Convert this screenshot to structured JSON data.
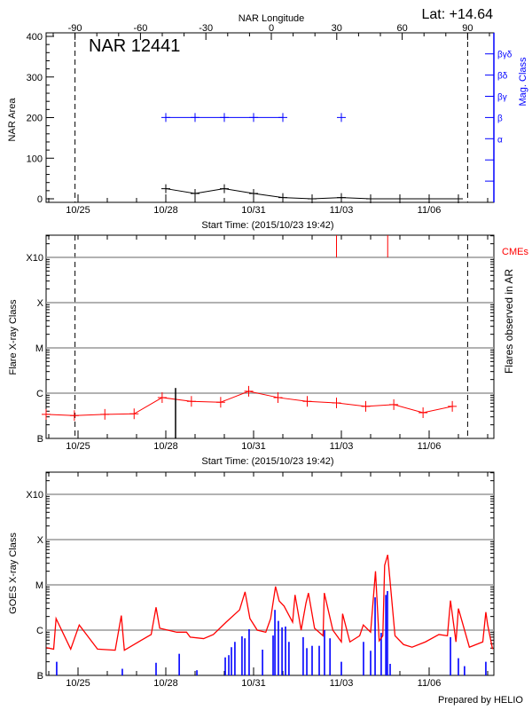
{
  "colors": {
    "area": "#000000",
    "mag_class": "#0000ff",
    "flares": "#ff0000",
    "cme": "#ff0000",
    "goes_long": "#ff0000",
    "goes_events": "#0000ff",
    "grid": "#999999"
  },
  "footer": "Prepared by HELIO",
  "chart_data": [
    {
      "type": "line",
      "title": "NAR 12441",
      "latitude_label": "Lat: +14.64",
      "xlabel": "Start Time: (2015/10/23 19:42)",
      "x_top_label": "NAR Longitude",
      "x_top_ticks": [
        -90,
        -60,
        -30,
        0,
        30,
        60,
        90
      ],
      "x_ticks": [
        "10/25",
        "10/28",
        "10/31",
        "11/03",
        "11/06"
      ],
      "ylabel": "NAR Area",
      "ylim": [
        0,
        400
      ],
      "y_ticks": [
        0,
        100,
        200,
        300,
        400
      ],
      "y2label": "Mag. Class",
      "y2_ticks": [
        "",
        "",
        "",
        "α",
        "β",
        "βγ",
        "βδ",
        "βγδ",
        ""
      ],
      "limb_longitudes": [
        -90,
        90
      ],
      "series": [
        {
          "kind": "area",
          "x": [
            "2015-10-28T00:00",
            "2015-10-29T00:00",
            "2015-10-30T00:00",
            "2015-10-31T00:00",
            "2015-11-01T00:00",
            "2015-11-02T00:00",
            "2015-11-03T00:00",
            "2015-11-04T00:00",
            "2015-11-05T00:00",
            "2015-11-06T00:00",
            "2015-11-07T00:00"
          ],
          "values": [
            25,
            13,
            25,
            13,
            3,
            0,
            3,
            0,
            0,
            0,
            0
          ]
        },
        {
          "kind": "mag_class",
          "x": [
            "2015-10-28T00:00",
            "2015-10-29T00:00",
            "2015-10-30T00:00",
            "2015-10-31T00:00",
            "2015-11-01T00:00",
            "2015-11-03T00:00"
          ],
          "values": [
            "β",
            "β",
            "β",
            "β",
            "β",
            "β"
          ]
        }
      ]
    },
    {
      "type": "line",
      "xlabel": "Start Time: (2015/10/23 19:42)",
      "x_ticks": [
        "10/25",
        "10/28",
        "10/31",
        "11/03",
        "11/06"
      ],
      "ylabel": "Flare X-ray Class",
      "y_scale": "log",
      "ylim": [
        1e-07,
        0.003
      ],
      "y_ticks": [
        {
          "label": "B",
          "value": 1e-07
        },
        {
          "label": "C",
          "value": 1e-06
        },
        {
          "label": "M",
          "value": 1e-05
        },
        {
          "label": "X",
          "value": 0.0001
        },
        {
          "label": "X10",
          "value": 0.001
        }
      ],
      "grid": true,
      "y2label": "Flares observed in AR",
      "cme_label": "CMEs",
      "limb_crossings": [
        "2015-10-24T21:00",
        "2015-11-07T10:00"
      ],
      "series": [
        {
          "kind": "flares",
          "x": [
            "2015-10-23T21:00",
            "2015-10-24T21:00",
            "2015-10-25T22:00",
            "2015-10-26T22:00",
            "2015-10-27T21:00",
            "2015-10-28T21:00",
            "2015-10-29T21:00",
            "2015-10-30T20:00",
            "2015-10-31T20:00",
            "2015-11-01T20:00",
            "2015-11-02T20:00",
            "2015-11-03T20:00",
            "2015-11-04T19:00",
            "2015-11-05T19:00",
            "2015-11-06T19:00"
          ],
          "values": [
            3.4e-07,
            3.2e-07,
            3.4e-07,
            3.5e-07,
            8e-07,
            6.6e-07,
            6.3e-07,
            1.1e-06,
            8e-07,
            6.6e-07,
            6.1e-07,
            5.1e-07,
            5.6e-07,
            3.7e-07,
            5.1e-07
          ]
        },
        {
          "kind": "ar_flare",
          "x": [
            "2015-10-28T08:00"
          ],
          "values": [
            1.3e-06
          ]
        },
        {
          "kind": "cme",
          "x": [
            "2015-11-02T20:00",
            "2015-11-04T14:00"
          ]
        }
      ]
    },
    {
      "type": "line",
      "x_ticks": [
        "10/25",
        "10/28",
        "10/31",
        "11/03",
        "11/06"
      ],
      "ylabel": "GOES X-ray Class",
      "y_scale": "log",
      "ylim": [
        1e-07,
        0.003
      ],
      "y_ticks": [
        {
          "label": "B",
          "value": 1e-07
        },
        {
          "label": "C",
          "value": 1e-06
        },
        {
          "label": "M",
          "value": 1e-05
        },
        {
          "label": "X",
          "value": 0.0001
        },
        {
          "label": "X10",
          "value": 0.001
        }
      ],
      "grid": true,
      "series": [
        {
          "kind": "goes_flux",
          "x": [
            "2015-10-23T22:00",
            "2015-10-24T04:00",
            "2015-10-24T06:00",
            "2015-10-24T18:00",
            "2015-10-25T01:00",
            "2015-10-25T16:00",
            "2015-10-26T06:30",
            "2015-10-26T11:30",
            "2015-10-26T14:00",
            "2015-10-27T04:00",
            "2015-10-27T12:00",
            "2015-10-27T16:00",
            "2015-10-27T19:00",
            "2015-10-28T09:00",
            "2015-10-28T17:00",
            "2015-10-28T20:00",
            "2015-10-29T07:00",
            "2015-10-29T15:00",
            "2015-10-30T01:30",
            "2015-10-30T12:30",
            "2015-10-30T17:00",
            "2015-10-30T21:00",
            "2015-10-31T03:00",
            "2015-10-31T10:00",
            "2015-10-31T14:00",
            "2015-10-31T18:00",
            "2015-10-31T21:00",
            "2015-11-01T01:00",
            "2015-11-01T08:00",
            "2015-11-01T10:00",
            "2015-11-01T15:00",
            "2015-11-01T19:00",
            "2015-11-01T21:00",
            "2015-11-02T02:00",
            "2015-11-02T09:00",
            "2015-11-02T10:00",
            "2015-11-02T17:00",
            "2015-11-03T00:00",
            "2015-11-03T01:00",
            "2015-11-03T07:00",
            "2015-11-03T15:00",
            "2015-11-03T18:00",
            "2015-11-04T00:00",
            "2015-11-04T04:00",
            "2015-11-04T07:00",
            "2015-11-04T10:00",
            "2015-11-04T11:30",
            "2015-11-04T14:00",
            "2015-11-04T20:00",
            "2015-11-05T03:00",
            "2015-11-05T10:00",
            "2015-11-05T21:00",
            "2015-11-06T08:00",
            "2015-11-06T15:00",
            "2015-11-06T17:30",
            "2015-11-06T22:00",
            "2015-11-07T00:00",
            "2015-11-07T09:00",
            "2015-11-07T20:00",
            "2015-11-07T22:30",
            "2015-11-08T00:00",
            "2015-11-08T04:00"
          ],
          "values": [
            4.1e-07,
            3.8e-07,
            1.8e-06,
            3.8e-07,
            1.3e-06,
            3.8e-07,
            3.6e-07,
            2.1e-06,
            3.6e-07,
            6e-07,
            8e-07,
            3.2e-06,
            1.1e-06,
            9e-07,
            9e-07,
            7e-07,
            6.5e-07,
            8e-07,
            1.5e-06,
            2.8e-06,
            7e-06,
            1.8e-06,
            1e-06,
            9e-07,
            1.8e-06,
            9.2e-06,
            4.4e-06,
            3.4e-06,
            1.5e-06,
            6e-06,
            1e-06,
            4e-06,
            6.6e-06,
            1.1e-06,
            7.5e-07,
            6.6e-06,
            1e-06,
            5.5e-07,
            2.3e-06,
            5.5e-07,
            7.5e-07,
            1.3e-06,
            9e-07,
            2e-05,
            5.8e-07,
            7.5e-07,
            2.7e-05,
            4.6e-05,
            7.5e-07,
            4.8e-07,
            4.2e-07,
            5.5e-07,
            8e-07,
            7.5e-07,
            4.5e-06,
            5.5e-07,
            3e-06,
            4.2e-07,
            5.5e-07,
            2.5e-06,
            1.3e-06,
            3.8e-07
          ]
        },
        {
          "kind": "goes_events",
          "x": [
            "2015-10-24T06:30",
            "2015-10-26T12:20",
            "2015-10-27T16:00",
            "2015-10-28T11:00",
            "2015-10-29T01:30",
            "2015-10-30T00:45",
            "2015-10-30T03:40",
            "2015-10-30T05:50",
            "2015-10-30T08:40",
            "2015-10-30T14:30",
            "2015-10-30T16:50",
            "2015-10-30T20:20",
            "2015-10-31T07:20",
            "2015-10-31T16:00",
            "2015-10-31T17:30",
            "2015-10-31T20:20",
            "2015-10-31T23:20",
            "2015-11-01T02:10",
            "2015-11-01T05:00",
            "2015-11-01T16:40",
            "2015-11-01T19:40",
            "2015-11-02T00:00",
            "2015-11-02T05:50",
            "2015-11-02T10:10",
            "2015-11-02T14:40",
            "2015-11-03T00:00",
            "2015-11-03T18:10",
            "2015-11-04T00:00",
            "2015-11-04T03:40",
            "2015-11-04T08:40",
            "2015-11-04T12:30",
            "2015-11-04T13:50",
            "2015-11-04T16:00",
            "2015-11-06T17:30",
            "2015-11-07T00:00",
            "2015-11-07T05:00",
            "2015-11-07T22:30"
          ],
          "values": [
            2e-07,
            1.4e-07,
            1.9e-07,
            3e-07,
            1.3e-07,
            2.5e-07,
            2.8e-07,
            4.2e-07,
            5.5e-07,
            7.3e-07,
            6.6e-07,
            1.05e-06,
            3.7e-07,
            7.6e-07,
            2.8e-06,
            1.6e-06,
            1.15e-06,
            1.2e-06,
            5.5e-07,
            7e-07,
            4e-07,
            4.5e-07,
            4.5e-07,
            1e-06,
            6.6e-07,
            2e-07,
            5.5e-07,
            3.5e-07,
            5.3e-06,
            8.7e-07,
            6e-06,
            7.3e-06,
            1.8e-07,
            7e-07,
            2.4e-07,
            1.6e-07,
            2e-07
          ]
        }
      ]
    }
  ]
}
